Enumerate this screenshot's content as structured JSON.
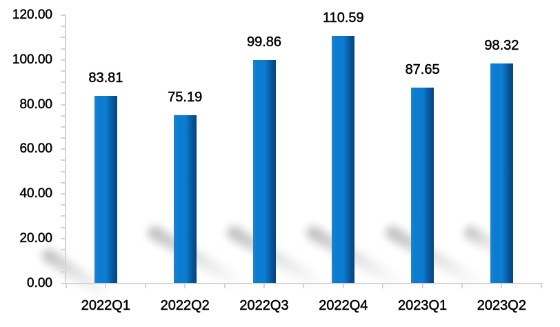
{
  "chart_data": {
    "type": "bar",
    "title": "",
    "xlabel": "",
    "ylabel": "",
    "categories": [
      "2022Q1",
      "2022Q2",
      "2022Q3",
      "2022Q4",
      "2023Q1",
      "2023Q2"
    ],
    "values": [
      83.81,
      75.19,
      99.86,
      110.59,
      87.65,
      98.32
    ],
    "data_labels": [
      "83.81",
      "75.19",
      "99.86",
      "110.59",
      "87.65",
      "98.32"
    ],
    "ylim": [
      0,
      120
    ],
    "y_major_unit": 20,
    "y_minor_unit": 5,
    "y_tick_labels": [
      "0.00",
      "20.00",
      "40.00",
      "60.00",
      "80.00",
      "100.00",
      "120.00"
    ],
    "grid": false,
    "legend_position": "none",
    "colors": {
      "bar_gradient_left": "#1486d8",
      "bar_gradient_mid": "#0b7ccf",
      "bar_gradient_dark": "#084f90",
      "bar_gradient_right": "#0a4377",
      "axis": "#d4d4d4",
      "label_text": "#000000",
      "background": "#ffffff",
      "shadow": "#969696"
    }
  }
}
